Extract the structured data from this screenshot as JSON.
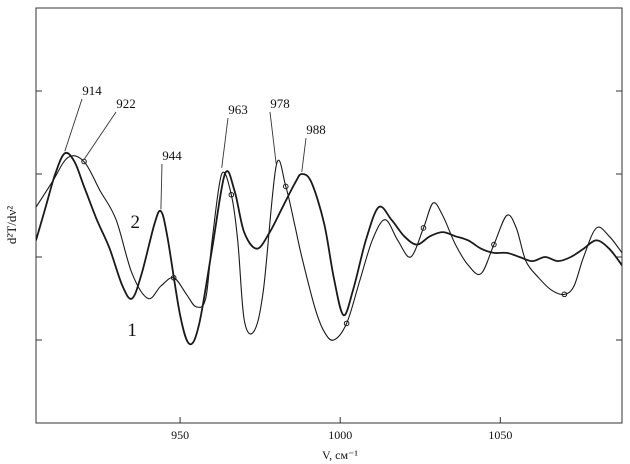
{
  "chart_data": {
    "type": "line",
    "xlabel": "V, см⁻¹",
    "ylabel": "d²T/dν²",
    "xlim": [
      905,
      1088
    ],
    "ylim": [
      0,
      100
    ],
    "xticks": [
      950,
      1000,
      1050
    ],
    "yticks": [
      20,
      40,
      60,
      80
    ],
    "grid": false,
    "series": [
      {
        "name": "1",
        "color": "#1a1a1a",
        "points": [
          [
            905,
            52
          ],
          [
            910,
            58
          ],
          [
            915,
            64
          ],
          [
            920,
            63
          ],
          [
            925,
            56
          ],
          [
            930,
            49
          ],
          [
            935,
            36
          ],
          [
            940,
            30
          ],
          [
            944,
            33
          ],
          [
            948,
            35
          ],
          [
            952,
            31
          ],
          [
            955,
            28
          ],
          [
            958,
            30
          ],
          [
            960,
            44
          ],
          [
            963,
            60
          ],
          [
            966,
            55
          ],
          [
            968,
            44
          ],
          [
            970,
            25
          ],
          [
            973,
            22
          ],
          [
            976,
            32
          ],
          [
            980,
            62
          ],
          [
            983,
            57
          ],
          [
            986,
            47
          ],
          [
            988,
            40
          ],
          [
            992,
            28
          ],
          [
            995,
            22
          ],
          [
            998,
            20
          ],
          [
            1002,
            24
          ],
          [
            1006,
            34
          ],
          [
            1010,
            44
          ],
          [
            1014,
            49
          ],
          [
            1018,
            44
          ],
          [
            1022,
            40
          ],
          [
            1026,
            47
          ],
          [
            1029,
            53
          ],
          [
            1032,
            50
          ],
          [
            1036,
            43
          ],
          [
            1040,
            38
          ],
          [
            1044,
            36
          ],
          [
            1048,
            43
          ],
          [
            1052,
            50
          ],
          [
            1055,
            47
          ],
          [
            1058,
            39
          ],
          [
            1062,
            35
          ],
          [
            1066,
            32
          ],
          [
            1070,
            31
          ],
          [
            1073,
            33
          ],
          [
            1076,
            40
          ],
          [
            1080,
            47
          ],
          [
            1084,
            45
          ],
          [
            1088,
            41
          ]
        ]
      },
      {
        "name": "2",
        "color": "#1a1a1a",
        "points": [
          [
            905,
            44
          ],
          [
            908,
            52
          ],
          [
            911,
            60
          ],
          [
            914,
            65
          ],
          [
            917,
            63
          ],
          [
            920,
            57
          ],
          [
            924,
            49
          ],
          [
            928,
            42
          ],
          [
            932,
            33
          ],
          [
            935,
            30
          ],
          [
            938,
            36
          ],
          [
            942,
            48
          ],
          [
            944,
            51
          ],
          [
            946,
            45
          ],
          [
            950,
            26
          ],
          [
            953,
            19
          ],
          [
            956,
            24
          ],
          [
            960,
            42
          ],
          [
            964,
            60
          ],
          [
            967,
            56
          ],
          [
            970,
            46
          ],
          [
            974,
            42
          ],
          [
            978,
            46
          ],
          [
            982,
            52
          ],
          [
            986,
            58
          ],
          [
            988,
            60
          ],
          [
            991,
            58
          ],
          [
            995,
            48
          ],
          [
            998,
            35
          ],
          [
            1001,
            26
          ],
          [
            1004,
            32
          ],
          [
            1008,
            44
          ],
          [
            1012,
            52
          ],
          [
            1016,
            49
          ],
          [
            1020,
            45
          ],
          [
            1024,
            43
          ],
          [
            1028,
            45
          ],
          [
            1032,
            46
          ],
          [
            1036,
            45
          ],
          [
            1040,
            44
          ],
          [
            1044,
            42
          ],
          [
            1048,
            41
          ],
          [
            1052,
            41
          ],
          [
            1056,
            40
          ],
          [
            1060,
            39
          ],
          [
            1064,
            40
          ],
          [
            1068,
            39
          ],
          [
            1072,
            40
          ],
          [
            1076,
            42
          ],
          [
            1080,
            44
          ],
          [
            1084,
            42
          ],
          [
            1088,
            38
          ]
        ]
      }
    ],
    "peak_labels": [
      {
        "text": "914",
        "x": 914,
        "y": 65
      },
      {
        "text": "922",
        "x": 920,
        "y": 63
      },
      {
        "text": "944",
        "x": 944,
        "y": 51
      },
      {
        "text": "963",
        "x": 963,
        "y": 61
      },
      {
        "text": "978",
        "x": 980,
        "y": 62
      },
      {
        "text": "988",
        "x": 988,
        "y": 60
      }
    ],
    "curve_labels": [
      {
        "text": "2",
        "x": 936,
        "y": 47
      },
      {
        "text": "1",
        "x": 935,
        "y": 21
      }
    ]
  }
}
